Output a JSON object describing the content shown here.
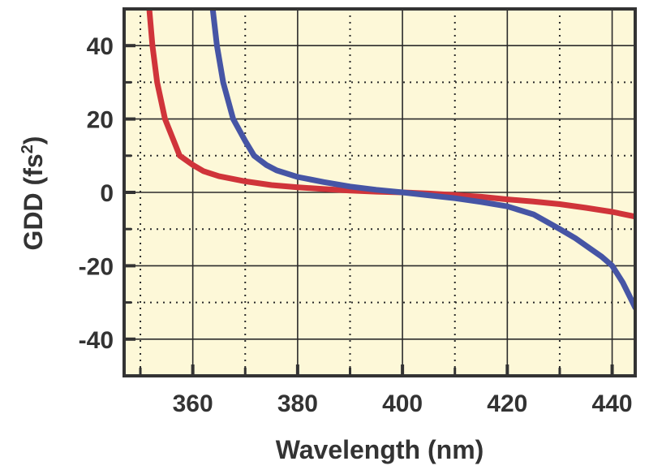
{
  "chart_data": {
    "type": "line",
    "title": "",
    "xlabel": "Wavelength (nm)",
    "ylabel_main": "GDD (fs",
    "ylabel_sup": "2",
    "ylabel_close": ")",
    "xlim": [
      346.9,
      444.4
    ],
    "ylim": [
      -50,
      50
    ],
    "x_ticks": [
      360,
      380,
      400,
      420,
      440
    ],
    "x_tick_labels": [
      "360",
      "380",
      "400",
      "420",
      "440"
    ],
    "x_minor_ticks": [
      350,
      370,
      390,
      410,
      430
    ],
    "y_ticks": [
      40,
      20,
      0,
      -20,
      -40
    ],
    "y_tick_labels": [
      "40",
      "20",
      "0",
      "-20",
      "-40"
    ],
    "y_minor_ticks": [
      30,
      10,
      -10,
      -30
    ],
    "grid": true,
    "colors": {
      "background": "#fdf8d8",
      "frame": "#333333",
      "grid": "#2b2b2b"
    },
    "series": [
      {
        "name": "red",
        "color": "#d0343a",
        "x": [
          351.7,
          352.3,
          353.2,
          354.7,
          357.5,
          360,
          362,
          365,
          370,
          375,
          380,
          385,
          390,
          395,
          400,
          405,
          410,
          415,
          420,
          425,
          430,
          435,
          440,
          444.4
        ],
        "y": [
          50,
          40,
          30,
          20,
          10,
          7.5,
          5.8,
          4.4,
          3.0,
          2.0,
          1.4,
          0.9,
          0.5,
          0.2,
          0,
          -0.3,
          -0.7,
          -1.2,
          -1.9,
          -2.5,
          -3.2,
          -4.2,
          -5.3,
          -6.6
        ]
      },
      {
        "name": "blue",
        "color": "#4655a5",
        "x": [
          363.8,
          364.6,
          365.8,
          367.7,
          370,
          371.7,
          374,
          376,
          380,
          385,
          390,
          395,
          400,
          405,
          410,
          415,
          420,
          425,
          430,
          433,
          436,
          438,
          440,
          442,
          444.4
        ],
        "y": [
          50,
          40,
          30,
          20,
          14,
          10,
          7.5,
          6.0,
          4.2,
          2.8,
          1.6,
          0.7,
          0,
          -0.8,
          -1.6,
          -2.6,
          -3.8,
          -6.0,
          -10.0,
          -12.5,
          -15.5,
          -17.5,
          -20.0,
          -24.5,
          -31.4
        ]
      }
    ]
  }
}
